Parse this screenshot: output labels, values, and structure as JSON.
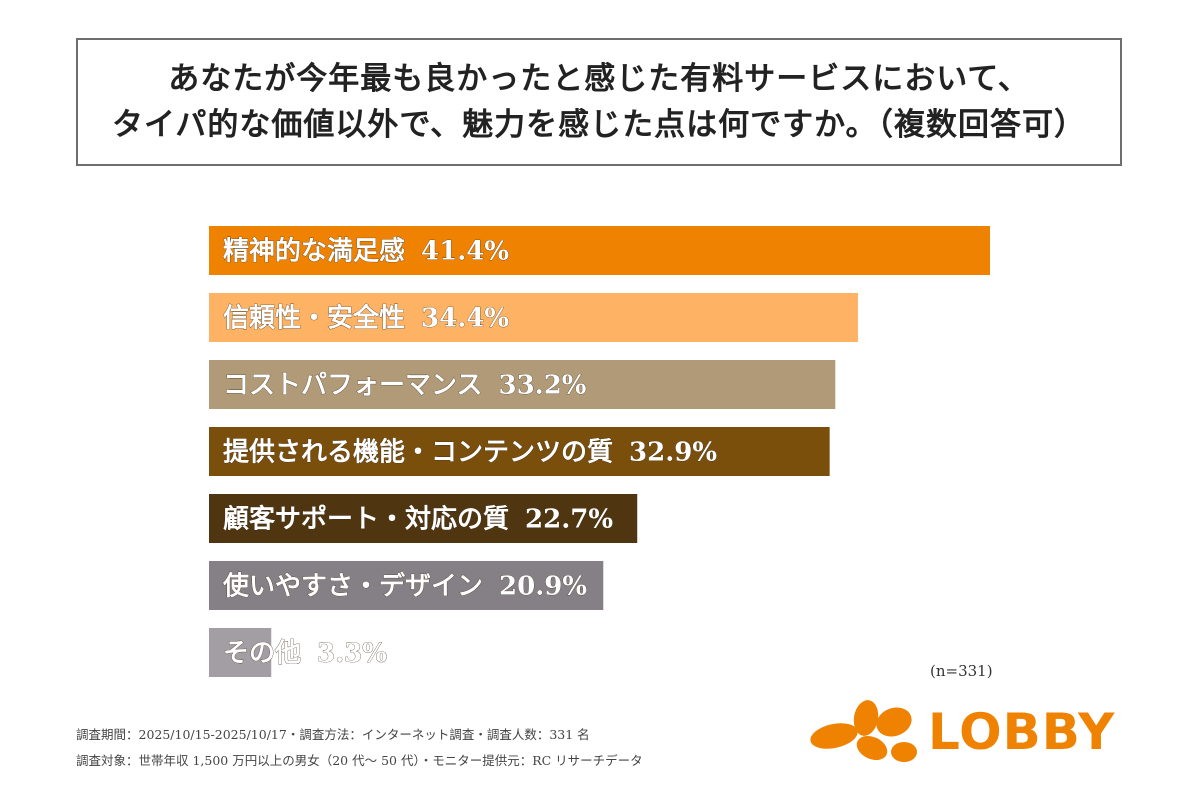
{
  "title": {
    "line1": "あなたが今年最も良かったと感じた有料サービスにおいて、",
    "line2": "タイパ的な価値以外で、魅力を感じた点は何ですか。（複数回答可）"
  },
  "chart_data": {
    "type": "bar",
    "orientation": "horizontal",
    "categories": [
      "精神的な満足感",
      "信頼性・安全性",
      "コストパフォーマンス",
      "提供される機能・コンテンツの質",
      "顧客サポート・対応の質",
      "使いやすさ・デザイン",
      "その他"
    ],
    "values": [
      41.4,
      34.4,
      33.2,
      32.9,
      22.7,
      20.9,
      3.3
    ],
    "value_suffix": "%",
    "colors": [
      "#ef8200",
      "#fdb264",
      "#b09a77",
      "#7a4f0c",
      "#4f3510",
      "#858085",
      "#a39ea3"
    ],
    "sample_size": "(n=331)"
  },
  "footnotes": {
    "line1": "調査期間：2025/10/15-2025/10/17・調査方法：インターネット調査・調査人数：331 名",
    "line2": "調査対象：世帯年収 1,500 万円以上の男女（20 代〜 50 代）・モニター提供元：RC リサーチデータ"
  },
  "logo": {
    "text": "LOBBY",
    "color": "#ef8200"
  }
}
